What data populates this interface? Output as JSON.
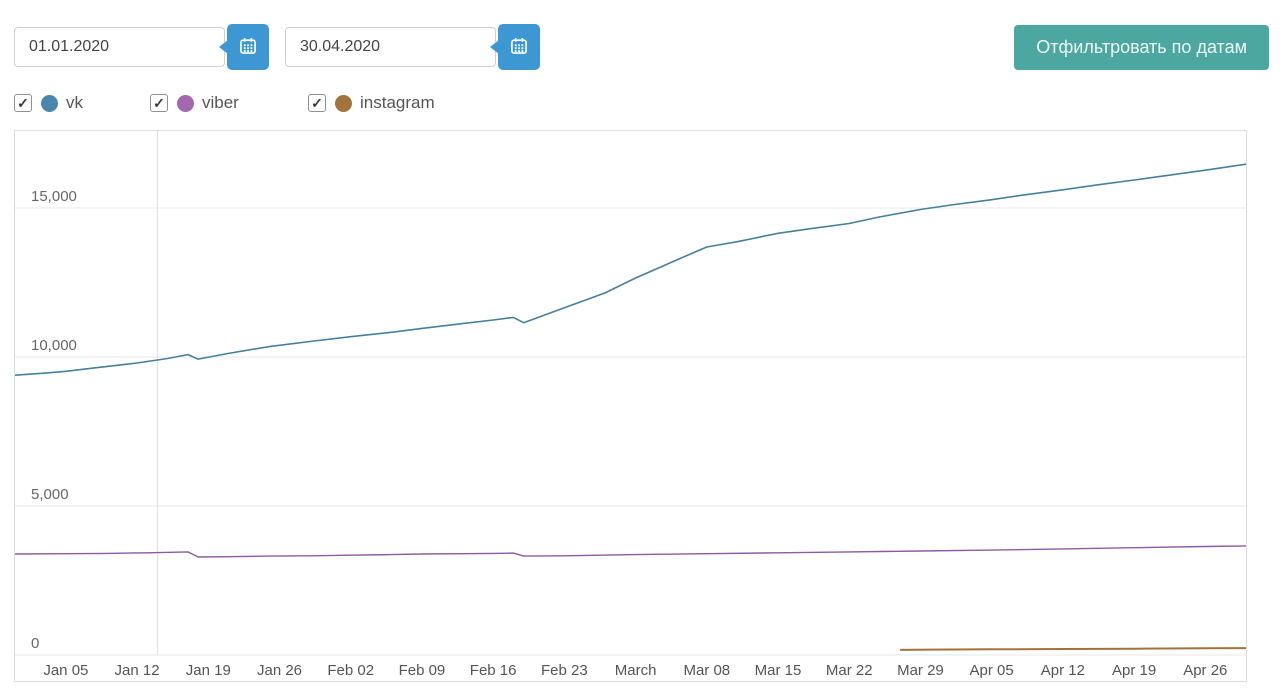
{
  "filters": {
    "date_from": {
      "value": "01.01.2020"
    },
    "date_to": {
      "value": "30.04.2020"
    },
    "filter_button_label": "Отфильтровать по датам"
  },
  "legend": {
    "items": [
      {
        "label": "vk",
        "color": "#4a86ad",
        "checked": true
      },
      {
        "label": "viber",
        "color": "#a468af",
        "checked": true
      },
      {
        "label": "instagram",
        "color": "#a3733d",
        "checked": true
      }
    ]
  },
  "chart_data": {
    "type": "line",
    "x_encoding": "day index, 0 = Dec 31 2019 (left edge), 121 = Apr 30 2020 (right edge)",
    "x_axis": {
      "domain_days": [
        0,
        121
      ],
      "tick_days": [
        5,
        12,
        19,
        26,
        33,
        40,
        47,
        54,
        61,
        68,
        75,
        82,
        89,
        96,
        103,
        110,
        117
      ],
      "tick_labels": [
        "Jan 05",
        "Jan 12",
        "Jan 19",
        "Jan 26",
        "Feb 02",
        "Feb 09",
        "Feb 16",
        "Feb 23",
        "March",
        "Mar 08",
        "Mar 15",
        "Mar 22",
        "Mar 29",
        "Apr 05",
        "Apr 12",
        "Apr 19",
        "Apr 26"
      ],
      "vertical_gridline_day": 14
    },
    "y_axis": {
      "ticks": [
        0,
        5000,
        10000,
        15000
      ],
      "tick_labels": [
        "0",
        "5,000",
        "10,000",
        "15,000"
      ],
      "max_value": 17590
    },
    "style": {
      "grid_color": "#e7e7e7",
      "vgrid_color": "#e0e0e0",
      "x_label_color": "#555555",
      "y_label_color": "#666666",
      "x_label_size": 15,
      "y_label_size": 15
    },
    "series": [
      {
        "name": "vk",
        "color": "#45809f",
        "width": 1.6,
        "points": [
          [
            0,
            9390
          ],
          [
            3,
            9460
          ],
          [
            5,
            9520
          ],
          [
            8,
            9640
          ],
          [
            12,
            9800
          ],
          [
            15,
            9950
          ],
          [
            17,
            10080
          ],
          [
            18,
            9930
          ],
          [
            21,
            10120
          ],
          [
            25,
            10350
          ],
          [
            29,
            10520
          ],
          [
            33,
            10680
          ],
          [
            37,
            10830
          ],
          [
            40,
            10960
          ],
          [
            44,
            11120
          ],
          [
            47,
            11240
          ],
          [
            49,
            11330
          ],
          [
            50,
            11150
          ],
          [
            52,
            11400
          ],
          [
            54,
            11650
          ],
          [
            56,
            11900
          ],
          [
            58,
            12150
          ],
          [
            61,
            12650
          ],
          [
            63,
            12950
          ],
          [
            65,
            13250
          ],
          [
            68,
            13690
          ],
          [
            71,
            13870
          ],
          [
            75,
            14150
          ],
          [
            78,
            14300
          ],
          [
            82,
            14480
          ],
          [
            85,
            14700
          ],
          [
            89,
            14950
          ],
          [
            92,
            15100
          ],
          [
            96,
            15280
          ],
          [
            99,
            15430
          ],
          [
            103,
            15610
          ],
          [
            106,
            15760
          ],
          [
            110,
            15940
          ],
          [
            113,
            16080
          ],
          [
            117,
            16270
          ],
          [
            121,
            16470
          ]
        ]
      },
      {
        "name": "viber",
        "color": "#8f5a9f",
        "width": 1.4,
        "points": [
          [
            0,
            3390
          ],
          [
            5,
            3400
          ],
          [
            9,
            3410
          ],
          [
            13,
            3430
          ],
          [
            17,
            3460
          ],
          [
            18,
            3290
          ],
          [
            21,
            3300
          ],
          [
            25,
            3320
          ],
          [
            29,
            3330
          ],
          [
            33,
            3350
          ],
          [
            37,
            3370
          ],
          [
            40,
            3390
          ],
          [
            44,
            3400
          ],
          [
            47,
            3410
          ],
          [
            49,
            3420
          ],
          [
            50,
            3320
          ],
          [
            54,
            3330
          ],
          [
            61,
            3370
          ],
          [
            68,
            3400
          ],
          [
            75,
            3430
          ],
          [
            82,
            3460
          ],
          [
            89,
            3490
          ],
          [
            96,
            3520
          ],
          [
            103,
            3560
          ],
          [
            110,
            3600
          ],
          [
            117,
            3640
          ],
          [
            121,
            3660
          ]
        ]
      },
      {
        "name": "instagram",
        "color": "#a3713c",
        "width": 2,
        "points": [
          [
            87,
            170
          ],
          [
            90,
            180
          ],
          [
            96,
            190
          ],
          [
            103,
            200
          ],
          [
            110,
            210
          ],
          [
            117,
            225
          ],
          [
            121,
            230
          ]
        ]
      }
    ]
  }
}
